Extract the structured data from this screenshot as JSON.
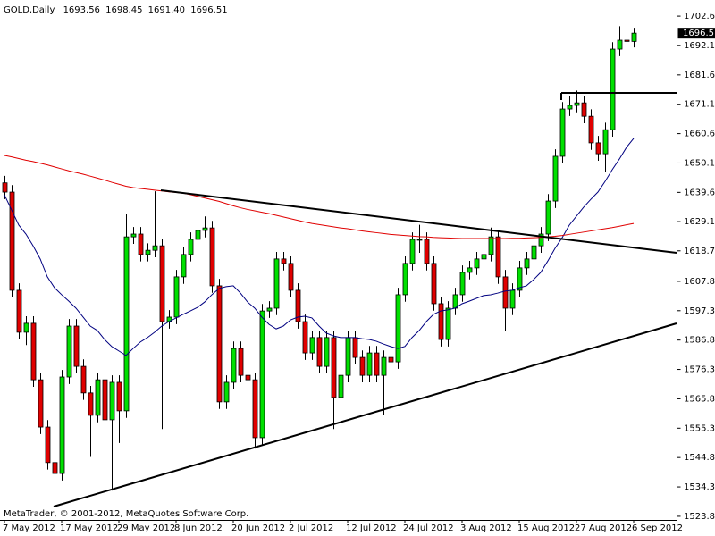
{
  "chart_data": {
    "type": "candlestick",
    "title": "GOLD,Daily",
    "header_values": [
      "1693.56",
      "1698.45",
      "1691.40",
      "1696.51"
    ],
    "footer": "MetaTrader, © 2001-2012, MetaQuotes Software Corp.",
    "categories": [
      "7 May 2012",
      null,
      null,
      null,
      null,
      null,
      null,
      null,
      "17 May 2012",
      null,
      null,
      null,
      null,
      null,
      null,
      null,
      "29 May 2012",
      null,
      null,
      null,
      null,
      null,
      null,
      null,
      "8 Jun 2012",
      null,
      null,
      null,
      null,
      null,
      null,
      null,
      "20 Jun 2012",
      null,
      null,
      null,
      null,
      null,
      null,
      null,
      "2 Jul 2012",
      null,
      null,
      null,
      null,
      null,
      null,
      null,
      "12 Jul 2012",
      null,
      null,
      null,
      null,
      null,
      null,
      null,
      "24 Jul 2012",
      null,
      null,
      null,
      null,
      null,
      null,
      null,
      "3 Aug 2012",
      null,
      null,
      null,
      null,
      null,
      null,
      null,
      "15 Aug 2012",
      null,
      null,
      null,
      null,
      null,
      null,
      null,
      "27 Aug 2012",
      null,
      null,
      null,
      null,
      null,
      null,
      null,
      "6 Sep 2012"
    ],
    "open": [
      1643.0,
      1639.7,
      1604.6,
      1589.6,
      1592.8,
      1572.6,
      1555.7,
      1543.0,
      1539.1,
      1573.6,
      1591.8,
      1577.4,
      1567.9,
      1559.9,
      1572.6,
      1558.3,
      1571.7,
      1561.5,
      1623.7,
      1624.7,
      1617.4,
      1618.9,
      1620.5,
      1593.4,
      1595.0,
      1609.4,
      1617.4,
      1622.8,
      1626.0,
      1626.9,
      1606.2,
      1564.7,
      1571.7,
      1583.8,
      1574.2,
      1572.6,
      1551.9,
      1597.2,
      1598.2,
      1615.8,
      1614.2,
      1604.6,
      1593.4,
      1582.2,
      1587.7,
      1577.4,
      1587.7,
      1566.3,
      1574.2,
      1587.7,
      1580.6,
      1574.2,
      1582.2,
      1574.2,
      1580.6,
      1579.0,
      1603.0,
      1614.2,
      1622.8,
      1622.8,
      1614.2,
      1599.8,
      1587.0,
      1598.2,
      1603.0,
      1611.0,
      1612.6,
      1615.8,
      1617.4,
      1623.7,
      1609.4,
      1598.2,
      1604.6,
      1612.6,
      1615.8,
      1620.5,
      1624.7,
      1636.5,
      1652.5,
      1669.4,
      1670.7,
      1671.6,
      1666.8,
      1657.3,
      1653.4,
      1662.0,
      1690.8,
      1694.0,
      1693.56
    ],
    "high": [
      1645.5,
      1642.2,
      1607.1,
      1595.3,
      1595.3,
      1575.1,
      1558.2,
      1545.5,
      1576.1,
      1594.3,
      1594.3,
      1579.9,
      1570.4,
      1575.1,
      1575.1,
      1574.2,
      1574.2,
      1632.0,
      1627.2,
      1627.2,
      1621.4,
      1640.0,
      1623.0,
      1597.5,
      1611.9,
      1619.9,
      1625.3,
      1628.5,
      1631.0,
      1629.4,
      1608.7,
      1574.2,
      1586.3,
      1586.3,
      1576.7,
      1575.1,
      1599.7,
      1600.7,
      1618.3,
      1618.3,
      1616.7,
      1607.1,
      1595.9,
      1590.2,
      1590.2,
      1590.2,
      1590.2,
      1576.7,
      1590.2,
      1590.2,
      1583.1,
      1584.7,
      1584.7,
      1583.1,
      1583.1,
      1605.5,
      1616.7,
      1625.3,
      1628.0,
      1625.3,
      1616.7,
      1602.3,
      1600.7,
      1605.5,
      1613.5,
      1615.1,
      1618.3,
      1619.9,
      1627.0,
      1626.2,
      1611.9,
      1607.1,
      1615.1,
      1618.3,
      1623.0,
      1627.2,
      1639.0,
      1655.0,
      1671.9,
      1674.0,
      1676.0,
      1674.1,
      1669.3,
      1659.8,
      1664.5,
      1693.3,
      1699.0,
      1699.5,
      1698.45
    ],
    "low": [
      1637.2,
      1602.1,
      1587.1,
      1585.0,
      1570.1,
      1553.2,
      1540.5,
      1526.7,
      1536.6,
      1571.1,
      1574.9,
      1565.4,
      1545.0,
      1557.4,
      1555.8,
      1533.0,
      1550.0,
      1559.0,
      1621.2,
      1614.9,
      1614.9,
      1616.4,
      1555.0,
      1590.9,
      1592.5,
      1606.9,
      1614.9,
      1620.3,
      1623.5,
      1603.7,
      1562.2,
      1562.2,
      1569.2,
      1571.7,
      1570.1,
      1548.0,
      1549.4,
      1594.7,
      1595.7,
      1611.7,
      1602.1,
      1590.9,
      1579.7,
      1579.7,
      1574.9,
      1574.9,
      1555.0,
      1563.8,
      1571.7,
      1578.1,
      1571.7,
      1571.7,
      1571.7,
      1560.0,
      1576.5,
      1576.5,
      1600.5,
      1611.7,
      1618.0,
      1611.7,
      1597.3,
      1584.5,
      1584.5,
      1595.7,
      1600.5,
      1608.5,
      1610.1,
      1613.3,
      1614.9,
      1606.9,
      1590.0,
      1595.7,
      1602.1,
      1610.1,
      1613.3,
      1618.0,
      1622.2,
      1634.0,
      1650.0,
      1666.9,
      1668.2,
      1664.3,
      1654.8,
      1650.9,
      1647.0,
      1659.5,
      1688.3,
      1691.0,
      1691.4
    ],
    "close": [
      1639.7,
      1604.6,
      1589.6,
      1592.8,
      1572.6,
      1555.7,
      1543.0,
      1539.1,
      1573.6,
      1591.8,
      1577.4,
      1567.9,
      1559.9,
      1572.6,
      1558.3,
      1571.7,
      1561.5,
      1623.7,
      1624.7,
      1617.4,
      1618.9,
      1620.5,
      1593.4,
      1595.0,
      1609.4,
      1617.4,
      1622.8,
      1626.0,
      1626.9,
      1606.2,
      1564.7,
      1571.7,
      1583.8,
      1574.2,
      1572.6,
      1551.9,
      1597.2,
      1598.2,
      1615.8,
      1614.2,
      1604.6,
      1593.4,
      1582.2,
      1587.7,
      1577.4,
      1587.7,
      1566.3,
      1574.2,
      1587.7,
      1580.6,
      1574.2,
      1582.2,
      1574.2,
      1580.6,
      1579.0,
      1603.0,
      1614.2,
      1622.8,
      1622.8,
      1614.2,
      1599.8,
      1587.0,
      1598.2,
      1603.0,
      1611.0,
      1612.6,
      1615.8,
      1617.4,
      1623.7,
      1609.4,
      1598.2,
      1604.6,
      1612.6,
      1615.8,
      1620.5,
      1624.7,
      1636.5,
      1652.5,
      1669.4,
      1670.7,
      1671.6,
      1666.8,
      1657.3,
      1653.4,
      1662.0,
      1690.8,
      1694.0,
      1693.56,
      1696.51
    ],
    "up_color": "#00e000",
    "down_color": "#e00000",
    "lines": [
      {
        "color": "#000080",
        "values": [
          1638.7,
          1633.3,
          1627.9,
          1624.7,
          1620.5,
          1615.8,
          1609.4,
          1605.5,
          1603.0,
          1600.7,
          1598.2,
          1595.0,
          1591.8,
          1590.2,
          1587.0,
          1584.5,
          1582.9,
          1581.3,
          1583.8,
          1586.1,
          1587.7,
          1589.6,
          1591.8,
          1593.4,
          1594.7,
          1596.0,
          1597.2,
          1598.5,
          1600.4,
          1603.0,
          1605.2,
          1605.9,
          1606.2,
          1603.6,
          1600.4,
          1598.2,
          1595.0,
          1592.4,
          1590.8,
          1591.8,
          1594.0,
          1595.0,
          1595.3,
          1594.7,
          1591.8,
          1589.3,
          1588.3,
          1587.7,
          1587.7,
          1587.7,
          1587.3,
          1587.0,
          1586.4,
          1585.4,
          1584.5,
          1583.8,
          1584.5,
          1587.7,
          1590.2,
          1593.4,
          1596.0,
          1597.2,
          1597.6,
          1598.2,
          1599.8,
          1600.7,
          1601.7,
          1602.7,
          1603.0,
          1603.6,
          1604.3,
          1604.6,
          1605.5,
          1606.2,
          1608.4,
          1611.0,
          1615.1,
          1619.6,
          1623.4,
          1627.9,
          1631.1,
          1634.3,
          1637.1,
          1639.7,
          1643.5,
          1647.7,
          1651.5,
          1655.7,
          1658.9
        ]
      },
      {
        "color": "#e00000",
        "values": [
          1652.8,
          1652.3,
          1651.7,
          1651.1,
          1650.6,
          1650.0,
          1649.4,
          1648.7,
          1648.0,
          1647.3,
          1646.7,
          1646.1,
          1645.4,
          1644.7,
          1644.0,
          1643.2,
          1642.5,
          1641.8,
          1641.3,
          1641.0,
          1640.7,
          1640.4,
          1640.1,
          1639.8,
          1639.6,
          1639.3,
          1638.8,
          1638.2,
          1637.6,
          1637.0,
          1636.4,
          1635.6,
          1634.8,
          1634.1,
          1633.5,
          1633.0,
          1632.5,
          1632.0,
          1631.4,
          1630.8,
          1630.2,
          1629.6,
          1629.0,
          1628.5,
          1628.1,
          1627.7,
          1627.3,
          1626.9,
          1626.6,
          1626.2,
          1625.8,
          1625.5,
          1625.2,
          1624.9,
          1624.6,
          1624.4,
          1624.2,
          1624.0,
          1623.8,
          1623.7,
          1623.5,
          1623.4,
          1623.3,
          1623.2,
          1623.1,
          1623.1,
          1623.1,
          1623.1,
          1623.1,
          1623.1,
          1623.1,
          1623.2,
          1623.2,
          1623.3,
          1623.4,
          1623.5,
          1623.7,
          1623.9,
          1624.2,
          1624.6,
          1625.0,
          1625.4,
          1625.8,
          1626.2,
          1626.6,
          1627.0,
          1627.5,
          1628.0,
          1628.5
        ]
      }
    ],
    "ylim": [
      1522.5,
      1707.1
    ],
    "yticks": [
      {
        "value": 1702.6,
        "label": "1702.60"
      },
      {
        "value": 1692.15,
        "label": "1692.15"
      },
      {
        "value": 1681.6,
        "label": "1681.60"
      },
      {
        "value": 1671.1,
        "label": "1671.10"
      },
      {
        "value": 1660.6,
        "label": "1660.60"
      },
      {
        "value": 1650.1,
        "label": "1650.10"
      },
      {
        "value": 1639.6,
        "label": "1639.60"
      },
      {
        "value": 1629.15,
        "label": "1629.15"
      },
      {
        "value": 1618.7,
        "label": "1618.70"
      },
      {
        "value": 1607.8,
        "label": "1607.80"
      },
      {
        "value": 1597.3,
        "label": "1597.30"
      },
      {
        "value": 1586.8,
        "label": "1586.80"
      },
      {
        "value": 1576.3,
        "label": "1576.30"
      },
      {
        "value": 1565.8,
        "label": "1565.80"
      },
      {
        "value": 1555.3,
        "label": "1555.30"
      },
      {
        "value": 1544.8,
        "label": "1544.80"
      },
      {
        "value": 1534.3,
        "label": "1534.30"
      },
      {
        "value": 1523.8,
        "label": "1523.80"
      }
    ],
    "grid": false
  }
}
